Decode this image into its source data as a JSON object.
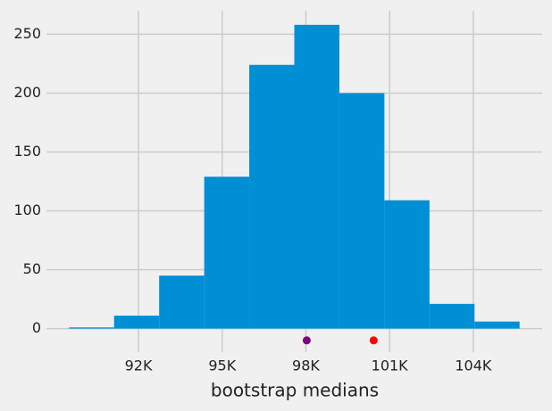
{
  "chart_data": {
    "type": "histogram",
    "xlabel": "bootstrap medians",
    "bins": [
      89510,
      91125,
      92740,
      94355,
      95970,
      97585,
      99200,
      100815,
      102430,
      104045,
      105660
    ],
    "counts": [
      1,
      11,
      45,
      129,
      224,
      258,
      200,
      109,
      21,
      6
    ],
    "color": "#008fd5",
    "points": {
      "x": [
        98030,
        100430
      ],
      "y": [
        -10,
        -10
      ],
      "colors": [
        "purple",
        "red"
      ]
    },
    "xlim": [
      88700,
      106470
    ],
    "ylim": [
      -20,
      270
    ],
    "xticks": [
      {
        "value": 92000,
        "label": "92K"
      },
      {
        "value": 95000,
        "label": "95K"
      },
      {
        "value": 98000,
        "label": "98K"
      },
      {
        "value": 101000,
        "label": "101K"
      },
      {
        "value": 104000,
        "label": "104K"
      }
    ],
    "yticks": [
      0,
      50,
      100,
      150,
      200,
      250
    ],
    "grid": true
  }
}
